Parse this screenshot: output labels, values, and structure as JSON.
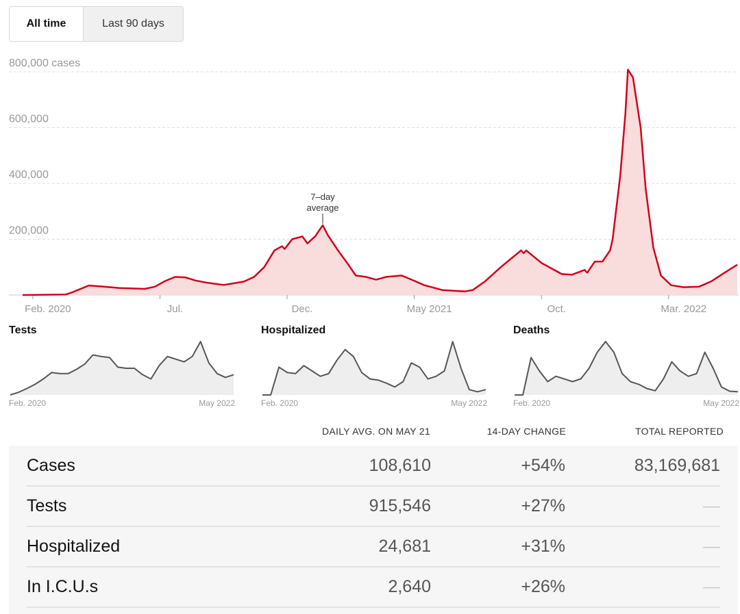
{
  "toggle": {
    "all_time": "All time",
    "last_90": "Last 90 days"
  },
  "chart_data": {
    "type": "area",
    "title": "Cases",
    "ylabel_suffix": " cases",
    "yticks": [
      200000,
      400000,
      600000,
      800000
    ],
    "ytick_labels": [
      "200,000",
      "400,000",
      "600,000",
      "800,000 cases"
    ],
    "ylim": [
      0,
      800000
    ],
    "x_unit": "months since Feb. 2020",
    "xlim": [
      -0.4,
      27.7
    ],
    "xticks": [
      0,
      5,
      10,
      15,
      20,
      25
    ],
    "xtick_labels": [
      "Feb. 2020",
      "Jul.",
      "Dec.",
      "May 2021",
      "Oct.",
      "Mar. 2022"
    ],
    "annotation": {
      "line1": "7–day",
      "line2": "average",
      "x": 11.4
    },
    "grid": true,
    "line_color": "#d0021b",
    "fill_color": "#f9dcdc",
    "x": [
      -0.4,
      1.3,
      1.56,
      2.2,
      2.8,
      3.4,
      4.4,
      4.8,
      5.2,
      5.6,
      6.0,
      6.4,
      6.8,
      7.2,
      7.5,
      7.9,
      8.3,
      8.7,
      9.1,
      9.5,
      9.8,
      9.9,
      10.2,
      10.6,
      10.8,
      11.1,
      11.4,
      11.6,
      12.0,
      12.4,
      12.7,
      13.1,
      13.5,
      13.9,
      14.5,
      14.9,
      15.4,
      16.1,
      17.0,
      17.3,
      17.8,
      18.4,
      18.8,
      19.2,
      19.3,
      19.4,
      20.0,
      20.8,
      21.2,
      21.7,
      21.8,
      22.1,
      22.4,
      22.7,
      22.8,
      23.1,
      23.3,
      23.4,
      23.6,
      23.9,
      24.1,
      24.4,
      24.7,
      25.1,
      25.6,
      26.2,
      26.7,
      27.2,
      27.7
    ],
    "values": [
      0,
      2000,
      10000,
      34000,
      30000,
      25000,
      22000,
      30000,
      50000,
      65000,
      63000,
      52000,
      45000,
      40000,
      36000,
      42000,
      48000,
      65000,
      100000,
      160000,
      175000,
      165000,
      200000,
      210000,
      185000,
      210000,
      250000,
      215000,
      160000,
      110000,
      70000,
      65000,
      55000,
      65000,
      70000,
      55000,
      35000,
      18000,
      13000,
      18000,
      50000,
      100000,
      130000,
      160000,
      150000,
      160000,
      115000,
      75000,
      73000,
      90000,
      80000,
      120000,
      120000,
      160000,
      200000,
      430000,
      650000,
      808000,
      780000,
      600000,
      380000,
      170000,
      70000,
      35000,
      28000,
      30000,
      50000,
      80000,
      108610
    ]
  },
  "small_charts": [
    {
      "title": "Tests",
      "start_label": "Feb. 2020",
      "end_label": "May 2022",
      "values": [
        0,
        0.05,
        0.12,
        0.2,
        0.3,
        0.42,
        0.4,
        0.4,
        0.48,
        0.58,
        0.75,
        0.72,
        0.7,
        0.52,
        0.5,
        0.5,
        0.38,
        0.3,
        0.55,
        0.72,
        0.67,
        0.62,
        0.72,
        1.0,
        0.6,
        0.4,
        0.33,
        0.38
      ]
    },
    {
      "title": "Hospitalized",
      "start_label": "Feb. 2020",
      "end_label": "May 2022",
      "values": [
        0,
        0,
        0.52,
        0.42,
        0.4,
        0.55,
        0.45,
        0.35,
        0.4,
        0.65,
        0.85,
        0.72,
        0.42,
        0.3,
        0.28,
        0.22,
        0.15,
        0.25,
        0.6,
        0.52,
        0.3,
        0.35,
        0.45,
        1.0,
        0.5,
        0.1,
        0.06,
        0.1
      ]
    },
    {
      "title": "Deaths",
      "start_label": "Feb. 2020",
      "end_label": "May 2022",
      "values": [
        0,
        0,
        0.7,
        0.45,
        0.25,
        0.35,
        0.3,
        0.25,
        0.3,
        0.5,
        0.8,
        1.0,
        0.8,
        0.4,
        0.25,
        0.2,
        0.12,
        0.08,
        0.3,
        0.62,
        0.45,
        0.35,
        0.4,
        0.8,
        0.5,
        0.15,
        0.07,
        0.06
      ]
    }
  ],
  "table": {
    "headers": {
      "avg": "DAILY AVG. ON MAY 21",
      "change": "14-DAY CHANGE",
      "total": "TOTAL REPORTED"
    },
    "rows": [
      {
        "name": "Cases",
        "avg": "108,610",
        "change": "+54%",
        "total": "83,169,681"
      },
      {
        "name": "Tests",
        "avg": "915,546",
        "change": "+27%",
        "total": "—"
      },
      {
        "name": "Hospitalized",
        "avg": "24,681",
        "change": "+31%",
        "total": "—"
      },
      {
        "name": "In I.C.U.s",
        "avg": "2,640",
        "change": "+26%",
        "total": "—"
      }
    ]
  }
}
